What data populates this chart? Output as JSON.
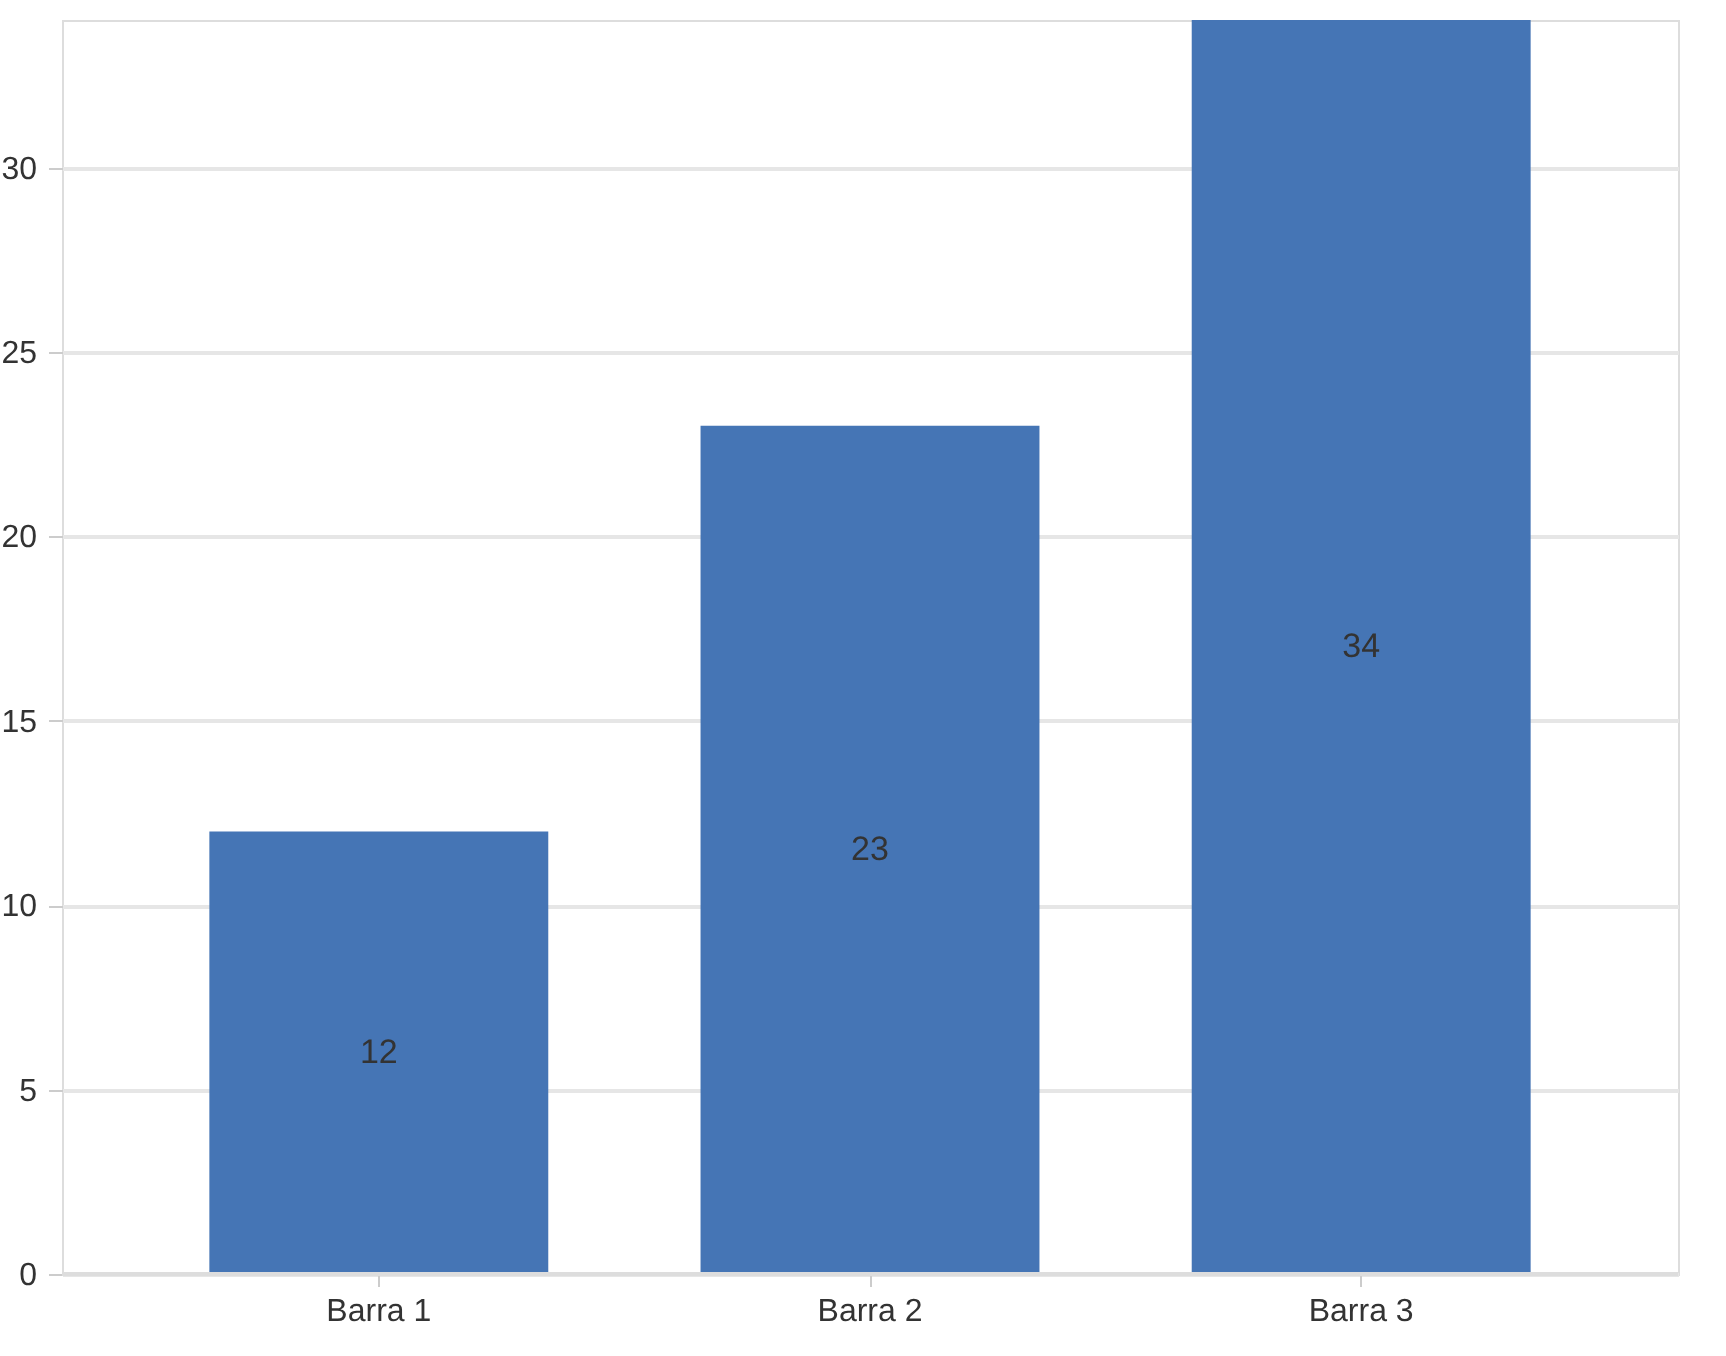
{
  "chart_data": {
    "type": "bar",
    "categories": [
      "Barra 1",
      "Barra 2",
      "Barra 3"
    ],
    "values": [
      12,
      23,
      34
    ],
    "color": "#4575b5",
    "ylim": [
      0,
      34
    ],
    "yticks": [
      0,
      5,
      10,
      15,
      20,
      25,
      30
    ],
    "grid": "y",
    "data_labels": true
  }
}
